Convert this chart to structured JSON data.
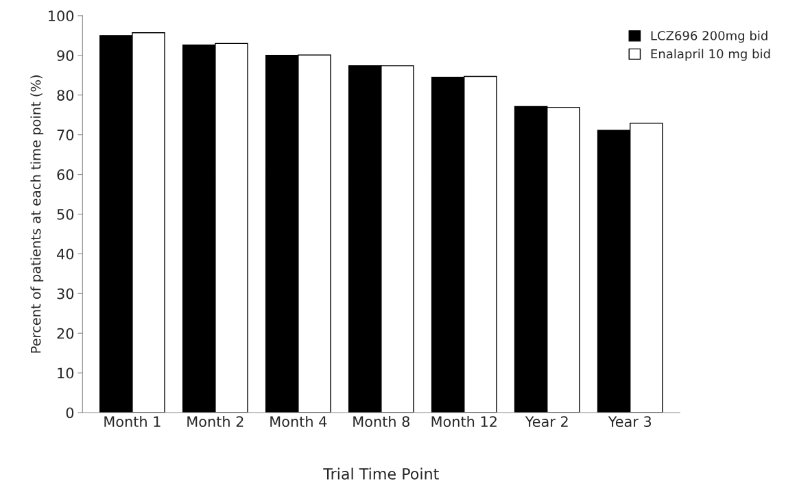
{
  "chart_data": {
    "type": "bar",
    "xlabel": "Trial Time Point",
    "ylabel": "Percent of patients at each time point (%)",
    "categories": [
      "Month 1",
      "Month 2",
      "Month 4",
      "Month 8",
      "Month 12",
      "Year 2",
      "Year 3"
    ],
    "series": [
      {
        "name": "LCZ696 200mg bid",
        "color": "#000000",
        "values": [
          95.0,
          92.6,
          90.0,
          87.4,
          84.5,
          77.1,
          71.1
        ]
      },
      {
        "name": "Enalapril 10 mg bid",
        "color": "#ffffff",
        "values": [
          95.7,
          93.0,
          90.1,
          87.4,
          84.7,
          76.9,
          72.9
        ]
      }
    ],
    "ylim": [
      0,
      100
    ],
    "yticks": [
      0,
      10,
      20,
      30,
      40,
      50,
      60,
      70,
      80,
      90,
      100
    ],
    "grid": false,
    "legend": "top right"
  }
}
